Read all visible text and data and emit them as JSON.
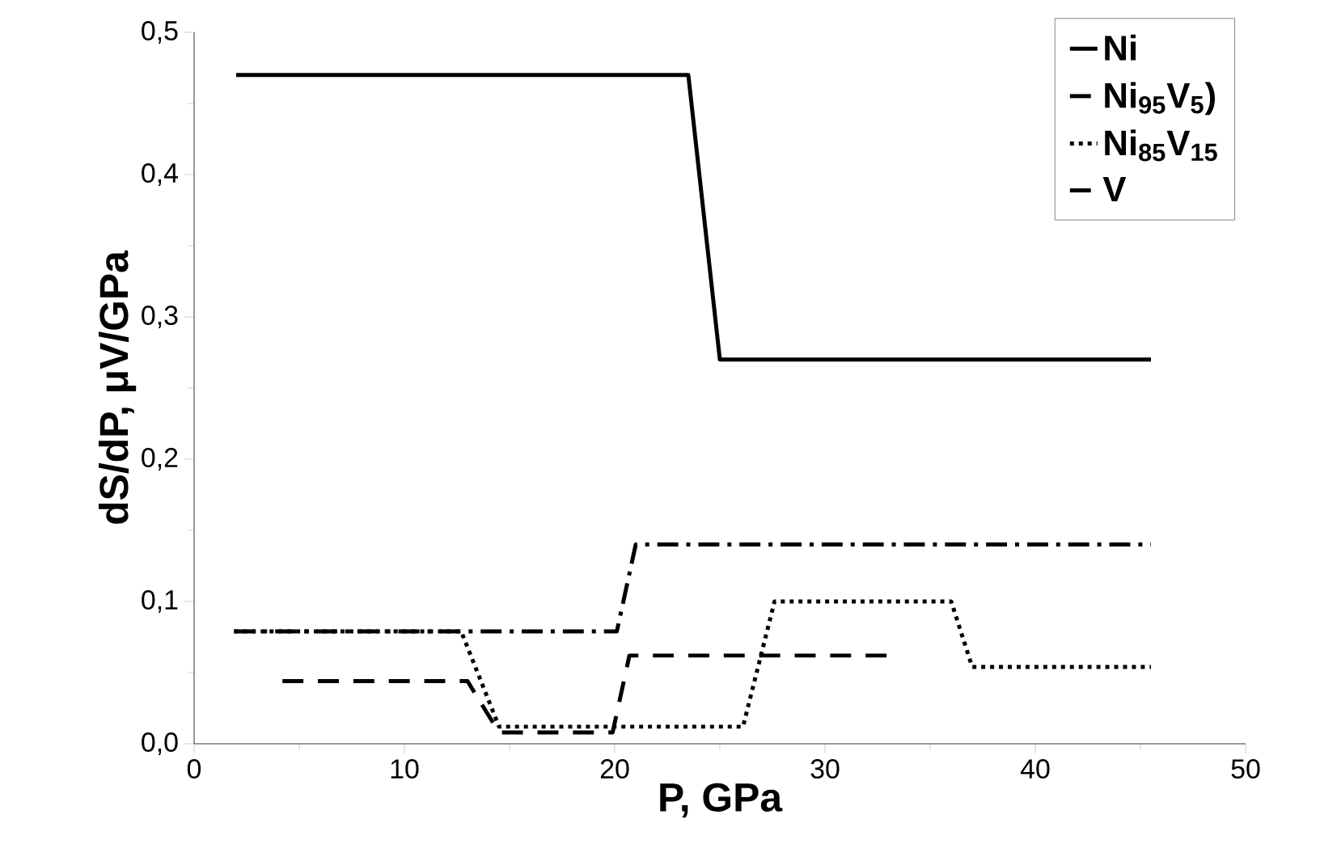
{
  "chart_data": {
    "type": "line",
    "xlabel": "P, GPa",
    "ylabel": "dS/dP, μV/GPa",
    "xlim": [
      0,
      50
    ],
    "xticks": [
      0,
      10,
      20,
      30,
      40,
      50
    ],
    "ylim": [
      0,
      0.5
    ],
    "yticks": [
      {
        "value": 0,
        "label": "0,0"
      },
      {
        "value": 0.1,
        "label": "0,1"
      },
      {
        "value": 0.2,
        "label": "0,2"
      },
      {
        "value": 0.3,
        "label": "0,3"
      },
      {
        "value": 0.4,
        "label": "0,4"
      },
      {
        "value": 0.5,
        "label": "0,5"
      }
    ],
    "legend": "top right",
    "grid": false,
    "series": [
      {
        "name": "Ni",
        "color": "#000000",
        "line_style": "solid",
        "x": [
          2,
          23.5,
          25,
          45.5
        ],
        "values": [
          0.47,
          0.47,
          0.27,
          0.27
        ]
      },
      {
        "name": "Ni$_{95}$V$_{5}$)",
        "color": "#000000",
        "line_style": "dashed",
        "x": [
          4.2,
          13,
          14.5,
          19.9,
          20.7,
          33
        ],
        "values": [
          0.044,
          0.044,
          0.008,
          0.008,
          0.062,
          0.062
        ]
      },
      {
        "name": "Ni$_{85}$V$_{15}$",
        "color": "#000000",
        "line_style": "dotted",
        "x": [
          1.9,
          12.7,
          14.5,
          26.1,
          27.6,
          36,
          37,
          45.5
        ],
        "values": [
          0.079,
          0.079,
          0.012,
          0.012,
          0.1,
          0.1,
          0.054,
          0.054
        ]
      },
      {
        "name": "V",
        "color": "#000000",
        "line_style": "dashdot",
        "x": [
          1.9,
          20.1,
          21,
          45.5
        ],
        "values": [
          0.079,
          0.079,
          0.14,
          0.14
        ]
      }
    ]
  }
}
